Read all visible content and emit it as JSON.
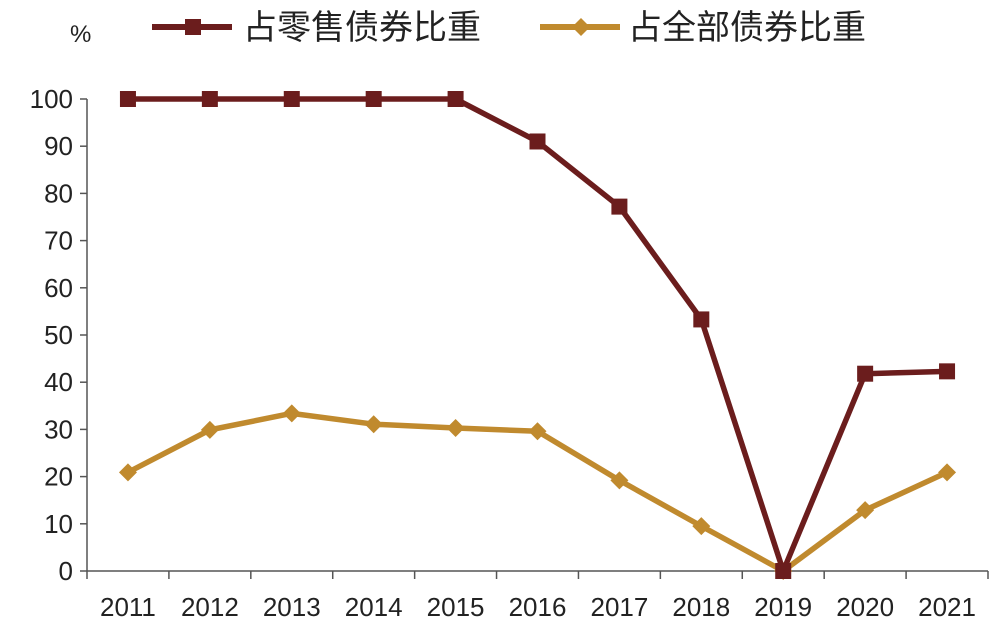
{
  "chart_data": {
    "type": "line",
    "categories": [
      "2011",
      "2012",
      "2013",
      "2014",
      "2015",
      "2016",
      "2017",
      "2018",
      "2019",
      "2020",
      "2021"
    ],
    "ylabel": "%",
    "ylim": [
      0,
      100
    ],
    "yticks": [
      0,
      10,
      20,
      30,
      40,
      50,
      60,
      70,
      80,
      90,
      100
    ],
    "grid": false,
    "legend_position": "top",
    "series": [
      {
        "name": "占零售债券比重",
        "color": "#6b1d1d",
        "marker": "square",
        "values": [
          100,
          100,
          100,
          100,
          100,
          91,
          77.2,
          53.3,
          0,
          41.8,
          42.3
        ]
      },
      {
        "name": "占全部债券比重",
        "color": "#c08a2e",
        "marker": "diamond",
        "values": [
          20.9,
          29.9,
          33.4,
          31.1,
          30.3,
          29.6,
          19.2,
          9.5,
          0,
          12.9,
          20.9
        ]
      }
    ]
  }
}
